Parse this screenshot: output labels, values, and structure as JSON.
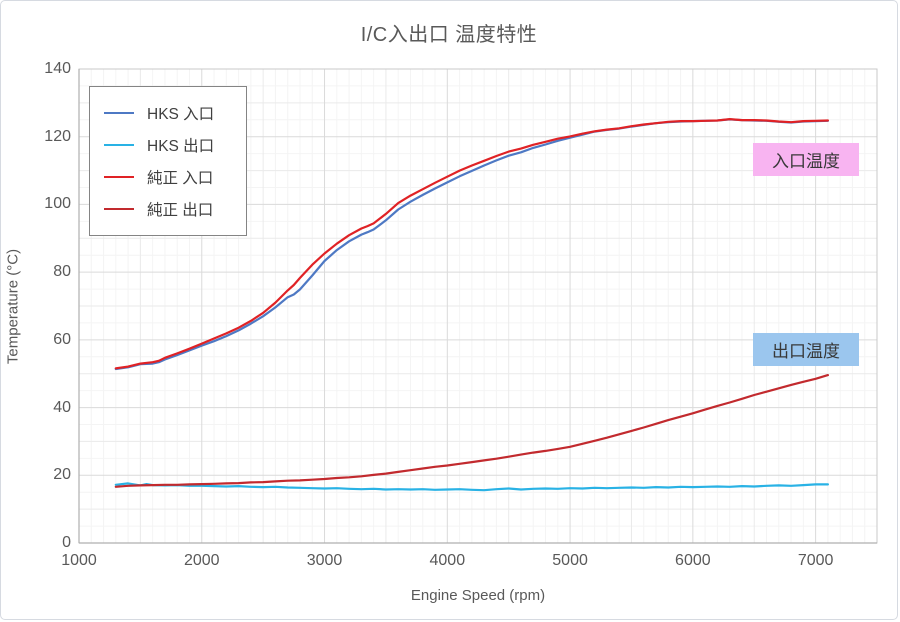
{
  "chart_data": {
    "type": "line",
    "title": "I/C入出口 温度特性",
    "xlabel": "Engine Speed (rpm)",
    "ylabel": "Temperature (°C)",
    "xlim": [
      1000,
      7500
    ],
    "ylim": [
      0,
      140
    ],
    "x_ticks": [
      1000,
      2000,
      3000,
      4000,
      5000,
      6000,
      7000
    ],
    "y_ticks": [
      0,
      20,
      40,
      60,
      80,
      100,
      120,
      140
    ],
    "x_minor_step": 100,
    "x_mid_step": 500,
    "y_minor_step": 5,
    "y_mid_step": 10,
    "grid": true,
    "legend_position": "top-left",
    "legend_entries": [
      "HKS 入口",
      "HKS 出口",
      "純正 入口",
      "純正 出口"
    ],
    "annotations": [
      {
        "text": "入口温度",
        "bg": "#F8B4F1",
        "position": "right-upper"
      },
      {
        "text": "出口温度",
        "bg": "#9BC6EE",
        "position": "right-lower"
      }
    ],
    "series": [
      {
        "name": "HKS 入口",
        "color": "#4E79C4",
        "points": [
          [
            1300,
            51.4
          ],
          [
            1400,
            51.9
          ],
          [
            1500,
            52.8
          ],
          [
            1600,
            53.0
          ],
          [
            1650,
            53.4
          ],
          [
            1700,
            54.2
          ],
          [
            1800,
            55.5
          ],
          [
            1900,
            56.9
          ],
          [
            2000,
            58.3
          ],
          [
            2100,
            59.6
          ],
          [
            2200,
            61.1
          ],
          [
            2300,
            62.8
          ],
          [
            2400,
            64.8
          ],
          [
            2500,
            67.0
          ],
          [
            2600,
            69.6
          ],
          [
            2700,
            72.6
          ],
          [
            2750,
            73.4
          ],
          [
            2800,
            74.9
          ],
          [
            2900,
            79.0
          ],
          [
            3000,
            83.3
          ],
          [
            3100,
            86.5
          ],
          [
            3200,
            89.1
          ],
          [
            3300,
            91.1
          ],
          [
            3350,
            91.8
          ],
          [
            3400,
            92.6
          ],
          [
            3500,
            95.3
          ],
          [
            3600,
            98.5
          ],
          [
            3700,
            100.8
          ],
          [
            3800,
            102.8
          ],
          [
            3900,
            104.7
          ],
          [
            4000,
            106.5
          ],
          [
            4100,
            108.3
          ],
          [
            4200,
            109.9
          ],
          [
            4300,
            111.5
          ],
          [
            4400,
            113.0
          ],
          [
            4500,
            114.4
          ],
          [
            4600,
            115.4
          ],
          [
            4700,
            116.7
          ],
          [
            4800,
            117.7
          ],
          [
            4900,
            118.8
          ],
          [
            5000,
            119.7
          ],
          [
            5100,
            120.6
          ],
          [
            5200,
            121.5
          ],
          [
            5300,
            122.0
          ],
          [
            5400,
            122.4
          ],
          [
            5500,
            123.0
          ],
          [
            5600,
            123.5
          ],
          [
            5700,
            124.0
          ],
          [
            5800,
            124.3
          ],
          [
            5900,
            124.5
          ],
          [
            6000,
            124.6
          ],
          [
            6100,
            124.7
          ],
          [
            6200,
            124.8
          ],
          [
            6300,
            125.1
          ],
          [
            6400,
            124.9
          ],
          [
            6500,
            124.8
          ],
          [
            6600,
            124.7
          ],
          [
            6700,
            124.4
          ],
          [
            6800,
            124.2
          ],
          [
            6900,
            124.5
          ],
          [
            7000,
            124.6
          ],
          [
            7100,
            124.7
          ]
        ]
      },
      {
        "name": "HKS 出口",
        "color": "#29B2E5",
        "points": [
          [
            1300,
            17.2
          ],
          [
            1400,
            17.6
          ],
          [
            1450,
            17.3
          ],
          [
            1500,
            17.0
          ],
          [
            1550,
            17.4
          ],
          [
            1600,
            17.1
          ],
          [
            1700,
            17.0
          ],
          [
            1800,
            17.1
          ],
          [
            1900,
            16.9
          ],
          [
            2000,
            16.9
          ],
          [
            2100,
            16.8
          ],
          [
            2200,
            16.7
          ],
          [
            2300,
            16.8
          ],
          [
            2400,
            16.6
          ],
          [
            2500,
            16.5
          ],
          [
            2600,
            16.6
          ],
          [
            2700,
            16.4
          ],
          [
            2800,
            16.3
          ],
          [
            2900,
            16.2
          ],
          [
            3000,
            16.1
          ],
          [
            3100,
            16.2
          ],
          [
            3200,
            16.0
          ],
          [
            3300,
            15.9
          ],
          [
            3400,
            16.0
          ],
          [
            3500,
            15.8
          ],
          [
            3600,
            15.9
          ],
          [
            3700,
            15.8
          ],
          [
            3800,
            15.9
          ],
          [
            3900,
            15.7
          ],
          [
            4000,
            15.8
          ],
          [
            4100,
            15.9
          ],
          [
            4200,
            15.7
          ],
          [
            4300,
            15.6
          ],
          [
            4400,
            15.9
          ],
          [
            4500,
            16.1
          ],
          [
            4600,
            15.8
          ],
          [
            4700,
            16.0
          ],
          [
            4800,
            16.1
          ],
          [
            4900,
            16.0
          ],
          [
            5000,
            16.2
          ],
          [
            5100,
            16.1
          ],
          [
            5200,
            16.3
          ],
          [
            5300,
            16.2
          ],
          [
            5400,
            16.3
          ],
          [
            5500,
            16.4
          ],
          [
            5600,
            16.3
          ],
          [
            5700,
            16.5
          ],
          [
            5800,
            16.4
          ],
          [
            5900,
            16.6
          ],
          [
            6000,
            16.5
          ],
          [
            6100,
            16.6
          ],
          [
            6200,
            16.7
          ],
          [
            6300,
            16.6
          ],
          [
            6400,
            16.8
          ],
          [
            6500,
            16.7
          ],
          [
            6600,
            16.9
          ],
          [
            6700,
            17.0
          ],
          [
            6800,
            16.9
          ],
          [
            6900,
            17.1
          ],
          [
            7000,
            17.3
          ],
          [
            7100,
            17.3
          ]
        ]
      },
      {
        "name": "純正 入口",
        "color": "#E02225",
        "points": [
          [
            1300,
            51.6
          ],
          [
            1400,
            52.1
          ],
          [
            1500,
            53.0
          ],
          [
            1600,
            53.4
          ],
          [
            1650,
            53.8
          ],
          [
            1700,
            54.7
          ],
          [
            1800,
            56.0
          ],
          [
            1900,
            57.4
          ],
          [
            2000,
            58.9
          ],
          [
            2100,
            60.4
          ],
          [
            2200,
            61.9
          ],
          [
            2300,
            63.6
          ],
          [
            2400,
            65.6
          ],
          [
            2500,
            68.0
          ],
          [
            2600,
            71.0
          ],
          [
            2700,
            74.6
          ],
          [
            2750,
            76.2
          ],
          [
            2800,
            78.3
          ],
          [
            2900,
            82.2
          ],
          [
            3000,
            85.5
          ],
          [
            3100,
            88.4
          ],
          [
            3200,
            90.9
          ],
          [
            3300,
            92.9
          ],
          [
            3350,
            93.6
          ],
          [
            3400,
            94.4
          ],
          [
            3500,
            97.2
          ],
          [
            3600,
            100.4
          ],
          [
            3700,
            102.6
          ],
          [
            3800,
            104.5
          ],
          [
            3900,
            106.4
          ],
          [
            4000,
            108.2
          ],
          [
            4100,
            110.0
          ],
          [
            4200,
            111.5
          ],
          [
            4300,
            112.9
          ],
          [
            4400,
            114.3
          ],
          [
            4500,
            115.6
          ],
          [
            4600,
            116.5
          ],
          [
            4700,
            117.6
          ],
          [
            4800,
            118.5
          ],
          [
            4900,
            119.4
          ],
          [
            5000,
            120.1
          ],
          [
            5100,
            120.9
          ],
          [
            5200,
            121.6
          ],
          [
            5300,
            122.1
          ],
          [
            5400,
            122.5
          ],
          [
            5500,
            123.1
          ],
          [
            5600,
            123.6
          ],
          [
            5700,
            124.0
          ],
          [
            5800,
            124.4
          ],
          [
            5900,
            124.6
          ],
          [
            6000,
            124.6
          ],
          [
            6100,
            124.7
          ],
          [
            6200,
            124.8
          ],
          [
            6300,
            125.2
          ],
          [
            6400,
            124.9
          ],
          [
            6500,
            124.9
          ],
          [
            6600,
            124.8
          ],
          [
            6700,
            124.5
          ],
          [
            6800,
            124.3
          ],
          [
            6900,
            124.6
          ],
          [
            7000,
            124.7
          ],
          [
            7100,
            124.8
          ]
        ]
      },
      {
        "name": "純正 出口",
        "color": "#C22A2E",
        "points": [
          [
            1300,
            16.6
          ],
          [
            1400,
            16.9
          ],
          [
            1500,
            17.0
          ],
          [
            1600,
            17.1
          ],
          [
            1700,
            17.2
          ],
          [
            1800,
            17.2
          ],
          [
            1900,
            17.3
          ],
          [
            2000,
            17.4
          ],
          [
            2100,
            17.5
          ],
          [
            2200,
            17.6
          ],
          [
            2300,
            17.7
          ],
          [
            2400,
            17.9
          ],
          [
            2500,
            18.0
          ],
          [
            2600,
            18.2
          ],
          [
            2700,
            18.4
          ],
          [
            2800,
            18.5
          ],
          [
            2900,
            18.7
          ],
          [
            3000,
            18.9
          ],
          [
            3100,
            19.2
          ],
          [
            3200,
            19.4
          ],
          [
            3300,
            19.7
          ],
          [
            3400,
            20.1
          ],
          [
            3500,
            20.5
          ],
          [
            3600,
            21.0
          ],
          [
            3700,
            21.5
          ],
          [
            3800,
            22.0
          ],
          [
            3900,
            22.5
          ],
          [
            4000,
            22.9
          ],
          [
            4100,
            23.4
          ],
          [
            4200,
            23.9
          ],
          [
            4300,
            24.4
          ],
          [
            4400,
            24.9
          ],
          [
            4500,
            25.5
          ],
          [
            4600,
            26.1
          ],
          [
            4700,
            26.7
          ],
          [
            4800,
            27.2
          ],
          [
            4900,
            27.8
          ],
          [
            5000,
            28.4
          ],
          [
            5100,
            29.3
          ],
          [
            5200,
            30.2
          ],
          [
            5300,
            31.1
          ],
          [
            5400,
            32.1
          ],
          [
            5500,
            33.1
          ],
          [
            5600,
            34.1
          ],
          [
            5700,
            35.2
          ],
          [
            5800,
            36.3
          ],
          [
            5900,
            37.3
          ],
          [
            6000,
            38.3
          ],
          [
            6100,
            39.4
          ],
          [
            6200,
            40.5
          ],
          [
            6300,
            41.5
          ],
          [
            6400,
            42.6
          ],
          [
            6500,
            43.7
          ],
          [
            6600,
            44.7
          ],
          [
            6700,
            45.7
          ],
          [
            6800,
            46.7
          ],
          [
            6900,
            47.6
          ],
          [
            7000,
            48.5
          ],
          [
            7100,
            49.6
          ]
        ]
      }
    ],
    "colors": {
      "text": "#595959",
      "legend_text": "#404040",
      "grid_minor": "#F4F4F4",
      "grid_mid": "#EAEAEA",
      "grid_major": "#DADADA",
      "plot_border": "#C9C9C9",
      "axis_line": "#AFAFAF"
    }
  }
}
